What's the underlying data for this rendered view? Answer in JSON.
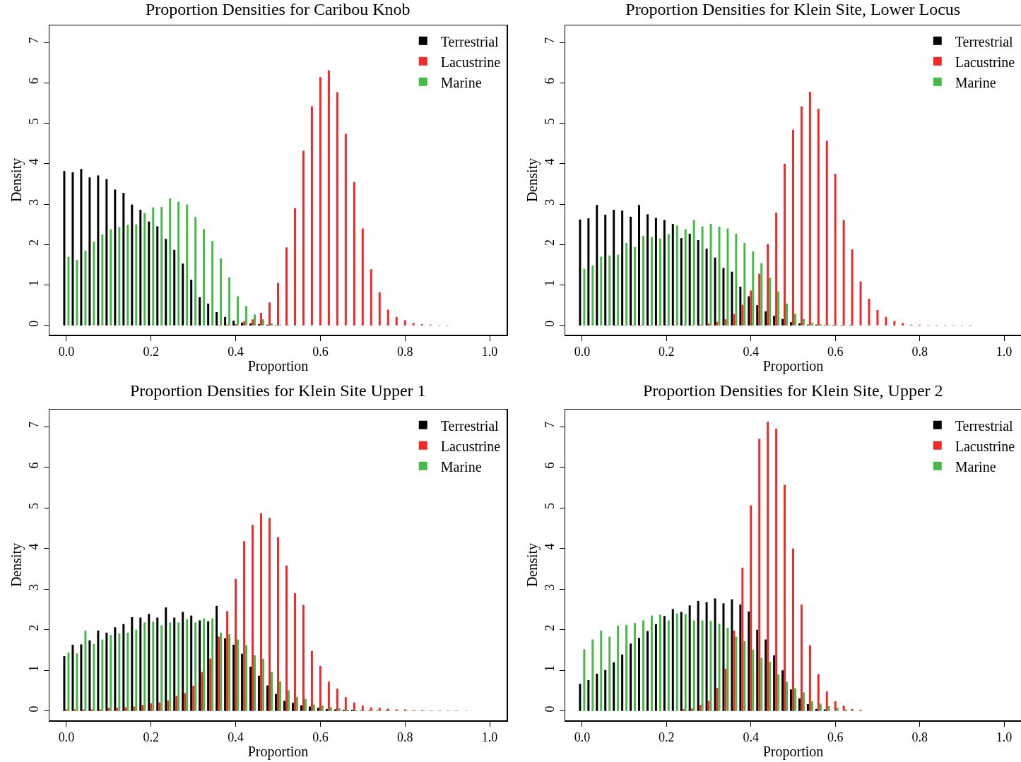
{
  "chart_data": [
    {
      "type": "bar",
      "title": "Proportion Densities for Caribou Knob",
      "xlabel": "Proportion",
      "ylabel": "Density",
      "legend": "top right",
      "x": [
        0,
        0.02,
        0.04,
        0.06,
        0.08,
        0.1,
        0.12,
        0.14,
        0.16,
        0.18,
        0.2,
        0.22,
        0.24,
        0.26,
        0.28,
        0.3,
        0.32,
        0.34,
        0.36,
        0.38,
        0.4,
        0.42,
        0.44,
        0.46,
        0.48,
        0.5,
        0.52,
        0.54,
        0.56,
        0.58,
        0.6,
        0.62,
        0.64,
        0.66,
        0.68,
        0.7,
        0.72,
        0.74,
        0.76,
        0.78,
        0.8,
        0.82,
        0.84,
        0.86,
        0.88,
        0.9,
        0.92,
        0.94,
        0.96,
        0.98
      ],
      "xlim": [
        -0.04,
        1.04
      ],
      "ylim": [
        -0.23,
        7.42
      ],
      "xticks": [
        {
          "value": 0,
          "label": "0.0"
        },
        {
          "value": 0.2,
          "label": "0.2"
        },
        {
          "value": 0.4,
          "label": "0.4"
        },
        {
          "value": 0.6,
          "label": "0.6"
        },
        {
          "value": 0.8,
          "label": "0.8"
        },
        {
          "value": 1,
          "label": "1.0"
        }
      ],
      "yticks": [
        0,
        1,
        2,
        3,
        4,
        5,
        6,
        7
      ],
      "series": [
        {
          "name": "Terrestrial",
          "color": "#000000",
          "values": [
            3.82,
            3.79,
            3.87,
            3.66,
            3.71,
            3.62,
            3.36,
            3.28,
            2.99,
            2.86,
            2.57,
            2.45,
            2.14,
            1.87,
            1.53,
            1.13,
            0.7,
            0.54,
            0.33,
            0.21,
            0.12,
            0.07,
            0.05,
            0.03,
            0.02,
            0.01,
            0,
            0,
            0,
            0,
            0,
            0,
            0,
            0,
            0,
            0,
            0,
            0,
            0,
            0,
            0,
            0,
            0,
            0,
            0,
            0,
            0,
            0,
            0,
            0
          ]
        },
        {
          "name": "Lacustrine",
          "color": "#ee2a2a",
          "values": [
            0,
            0,
            0,
            0,
            0,
            0,
            0,
            0,
            0,
            0,
            0,
            0,
            0,
            0,
            0,
            0,
            0,
            0,
            0.01,
            0.02,
            0.03,
            0.1,
            0.15,
            0.31,
            0.57,
            1.05,
            1.93,
            2.9,
            4.32,
            5.42,
            6.14,
            6.31,
            5.77,
            4.74,
            3.55,
            2.4,
            1.39,
            0.82,
            0.39,
            0.21,
            0.13,
            0.06,
            0.03,
            0.02,
            0.01,
            0.01,
            0,
            0,
            0,
            0
          ]
        },
        {
          "name": "Marine",
          "color": "#46b946",
          "values": [
            1.7,
            1.62,
            1.85,
            2.07,
            2.25,
            2.38,
            2.43,
            2.49,
            2.5,
            2.78,
            2.92,
            2.93,
            3.14,
            3.06,
            2.99,
            2.68,
            2.38,
            2.09,
            1.66,
            1.19,
            0.72,
            0.48,
            0.27,
            0.15,
            0.05,
            0.02,
            0.01,
            0,
            0,
            0,
            0,
            0,
            0,
            0,
            0,
            0,
            0,
            0,
            0,
            0,
            0,
            0,
            0,
            0,
            0,
            0,
            0,
            0,
            0,
            0
          ]
        }
      ]
    },
    {
      "type": "bar",
      "title": "Proportion Densities for Klein Site, Lower Locus",
      "xlabel": "Proportion",
      "ylabel": "Density",
      "legend": "top right",
      "x": [
        0,
        0.02,
        0.04,
        0.06,
        0.08,
        0.1,
        0.12,
        0.14,
        0.16,
        0.18,
        0.2,
        0.22,
        0.24,
        0.26,
        0.28,
        0.3,
        0.32,
        0.34,
        0.36,
        0.38,
        0.4,
        0.42,
        0.44,
        0.46,
        0.48,
        0.5,
        0.52,
        0.54,
        0.56,
        0.58,
        0.6,
        0.62,
        0.64,
        0.66,
        0.68,
        0.7,
        0.72,
        0.74,
        0.76,
        0.78,
        0.8,
        0.82,
        0.84,
        0.86,
        0.88,
        0.9,
        0.92,
        0.94,
        0.96,
        0.98
      ],
      "xlim": [
        -0.04,
        1.04
      ],
      "ylim": [
        -0.23,
        7.42
      ],
      "xticks": [
        {
          "value": 0,
          "label": "0.0"
        },
        {
          "value": 0.2,
          "label": "0.2"
        },
        {
          "value": 0.4,
          "label": "0.4"
        },
        {
          "value": 0.6,
          "label": "0.6"
        },
        {
          "value": 0.8,
          "label": "0.8"
        },
        {
          "value": 1,
          "label": "1.0"
        }
      ],
      "yticks": [
        0,
        1,
        2,
        3,
        4,
        5,
        6,
        7
      ],
      "series": [
        {
          "name": "Terrestrial",
          "color": "#000000",
          "values": [
            2.62,
            2.65,
            2.98,
            2.74,
            2.86,
            2.84,
            2.69,
            2.98,
            2.75,
            2.66,
            2.61,
            2.51,
            2.16,
            2.27,
            2.11,
            1.9,
            1.68,
            1.42,
            1.33,
            0.96,
            0.72,
            0.5,
            0.35,
            0.24,
            0.16,
            0.08,
            0.05,
            0.02,
            0.02,
            0.01,
            0.01,
            0.01,
            0.01,
            0,
            0,
            0,
            0,
            0,
            0,
            0,
            0,
            0,
            0,
            0,
            0,
            0,
            0,
            0,
            0,
            0
          ]
        },
        {
          "name": "Lacustrine",
          "color": "#ee2a2a",
          "values": [
            0,
            0,
            0,
            0.01,
            0.01,
            0.01,
            0.01,
            0.01,
            0.01,
            0.01,
            0.01,
            0.01,
            0.01,
            0.01,
            0.02,
            0.05,
            0.09,
            0.15,
            0.28,
            0.51,
            0.86,
            1.28,
            2.01,
            2.79,
            4.0,
            4.84,
            5.42,
            5.78,
            5.36,
            4.57,
            3.75,
            2.61,
            1.88,
            1.09,
            0.66,
            0.38,
            0.21,
            0.11,
            0.06,
            0.02,
            0.02,
            0.01,
            0.01,
            0.01,
            0.01,
            0.01,
            0.01,
            0,
            0,
            0
          ]
        },
        {
          "name": "Marine",
          "color": "#46b946",
          "values": [
            1.4,
            1.48,
            1.7,
            1.73,
            1.75,
            2.04,
            1.94,
            2.21,
            2.19,
            2.15,
            2.26,
            2.47,
            2.38,
            2.61,
            2.45,
            2.51,
            2.44,
            2.4,
            2.27,
            2.04,
            1.83,
            1.54,
            1.18,
            0.84,
            0.54,
            0.29,
            0.16,
            0.07,
            0.03,
            0.02,
            0.01,
            0.01,
            0,
            0,
            0,
            0,
            0,
            0,
            0,
            0,
            0,
            0,
            0,
            0,
            0,
            0,
            0,
            0,
            0,
            0
          ]
        }
      ]
    },
    {
      "type": "bar",
      "title": "Proportion Densities for Klein Site Upper 1",
      "xlabel": "Proportion",
      "ylabel": "Density",
      "legend": "top right",
      "x": [
        0,
        0.02,
        0.04,
        0.06,
        0.08,
        0.1,
        0.12,
        0.14,
        0.16,
        0.18,
        0.2,
        0.22,
        0.24,
        0.26,
        0.28,
        0.3,
        0.32,
        0.34,
        0.36,
        0.38,
        0.4,
        0.42,
        0.44,
        0.46,
        0.48,
        0.5,
        0.52,
        0.54,
        0.56,
        0.58,
        0.6,
        0.62,
        0.64,
        0.66,
        0.68,
        0.7,
        0.72,
        0.74,
        0.76,
        0.78,
        0.8,
        0.82,
        0.84,
        0.86,
        0.88,
        0.9,
        0.92,
        0.94,
        0.96,
        0.98
      ],
      "xlim": [
        -0.04,
        1.04
      ],
      "ylim": [
        -0.23,
        7.42
      ],
      "xticks": [
        {
          "value": 0,
          "label": "0.0"
        },
        {
          "value": 0.2,
          "label": "0.2"
        },
        {
          "value": 0.4,
          "label": "0.4"
        },
        {
          "value": 0.6,
          "label": "0.6"
        },
        {
          "value": 0.8,
          "label": "0.8"
        },
        {
          "value": 1,
          "label": "1.0"
        }
      ],
      "yticks": [
        0,
        1,
        2,
        3,
        4,
        5,
        6,
        7
      ],
      "series": [
        {
          "name": "Terrestrial",
          "color": "#000000",
          "values": [
            1.35,
            1.63,
            1.64,
            1.74,
            1.98,
            1.93,
            2.06,
            2.14,
            2.31,
            2.3,
            2.39,
            2.3,
            2.55,
            2.3,
            2.44,
            2.35,
            2.23,
            2.21,
            2.59,
            1.79,
            1.63,
            1.41,
            1.09,
            0.87,
            0.63,
            0.42,
            0.25,
            0.2,
            0.14,
            0.11,
            0.08,
            0.05,
            0.04,
            0.03,
            0.03,
            0.01,
            0.01,
            0.01,
            0.01,
            0,
            0,
            0,
            0,
            0,
            0,
            0,
            0,
            0,
            0,
            0
          ]
        },
        {
          "name": "Lacustrine",
          "color": "#ee2a2a",
          "values": [
            0.04,
            0.04,
            0.04,
            0.04,
            0.04,
            0.08,
            0.08,
            0.09,
            0.11,
            0.15,
            0.19,
            0.21,
            0.26,
            0.37,
            0.44,
            0.62,
            0.96,
            1.29,
            1.83,
            2.46,
            3.25,
            4.18,
            4.58,
            4.87,
            4.75,
            4.28,
            3.58,
            2.9,
            2.61,
            1.48,
            1.11,
            0.72,
            0.55,
            0.34,
            0.21,
            0.13,
            0.09,
            0.08,
            0.06,
            0.04,
            0.04,
            0.02,
            0.02,
            0.01,
            0.01,
            0.01,
            0.01,
            0,
            0,
            0
          ]
        },
        {
          "name": "Marine",
          "color": "#46b946",
          "values": [
            1.44,
            1.42,
            1.98,
            1.65,
            1.76,
            1.87,
            1.91,
            1.93,
            2.0,
            2.18,
            2.2,
            2.11,
            2.18,
            2.18,
            2.26,
            2.18,
            2.28,
            2.28,
            1.93,
            1.89,
            1.76,
            1.62,
            1.37,
            1.29,
            0.96,
            0.73,
            0.51,
            0.35,
            0.3,
            0.16,
            0.14,
            0.09,
            0.07,
            0.03,
            0.02,
            0.01,
            0.01,
            0.01,
            0.01,
            0.01,
            0.01,
            0.01,
            0.01,
            0.01,
            0.01,
            0.01,
            0.01,
            0.01,
            0,
            0
          ]
        }
      ]
    },
    {
      "type": "bar",
      "title": "Proportion Densities for Klein Site, Upper 2",
      "xlabel": "Proportion",
      "ylabel": "Density",
      "legend": "top right",
      "x": [
        0,
        0.02,
        0.04,
        0.06,
        0.08,
        0.1,
        0.12,
        0.14,
        0.16,
        0.18,
        0.2,
        0.22,
        0.24,
        0.26,
        0.28,
        0.3,
        0.32,
        0.34,
        0.36,
        0.38,
        0.4,
        0.42,
        0.44,
        0.46,
        0.48,
        0.5,
        0.52,
        0.54,
        0.56,
        0.58,
        0.6,
        0.62,
        0.64,
        0.66,
        0.68,
        0.7,
        0.72,
        0.74,
        0.76,
        0.78,
        0.8,
        0.82,
        0.84,
        0.86,
        0.88,
        0.9,
        0.92,
        0.94,
        0.96,
        0.98
      ],
      "xlim": [
        -0.04,
        1.04
      ],
      "ylim": [
        -0.23,
        7.42
      ],
      "xticks": [
        {
          "value": 0,
          "label": "0.0"
        },
        {
          "value": 0.2,
          "label": "0.2"
        },
        {
          "value": 0.4,
          "label": "0.4"
        },
        {
          "value": 0.6,
          "label": "0.6"
        },
        {
          "value": 0.8,
          "label": "0.8"
        },
        {
          "value": 1,
          "label": "1.0"
        }
      ],
      "yticks": [
        0,
        1,
        2,
        3,
        4,
        5,
        6,
        7
      ],
      "series": [
        {
          "name": "Terrestrial",
          "color": "#000000",
          "values": [
            0.67,
            0.76,
            0.92,
            1.01,
            1.2,
            1.39,
            1.66,
            1.8,
            1.97,
            2.14,
            2.34,
            2.51,
            2.44,
            2.6,
            2.71,
            2.68,
            2.77,
            2.65,
            2.75,
            2.62,
            2.45,
            2.0,
            1.76,
            1.37,
            1.0,
            0.53,
            0.31,
            0.17,
            0.05,
            0.04,
            0,
            0,
            0,
            0,
            0,
            0,
            0,
            0,
            0,
            0,
            0,
            0,
            0,
            0,
            0,
            0,
            0,
            0,
            0,
            0
          ]
        },
        {
          "name": "Lacustrine",
          "color": "#ee2a2a",
          "values": [
            0,
            0,
            0,
            0,
            0,
            0,
            0,
            0,
            0,
            0,
            0,
            0,
            0.05,
            0.06,
            0.15,
            0.25,
            0.57,
            1.04,
            1.98,
            3.53,
            5.06,
            6.7,
            7.12,
            6.95,
            5.57,
            4.0,
            2.62,
            1.62,
            0.91,
            0.48,
            0.24,
            0.13,
            0.05,
            0.03,
            0,
            0,
            0,
            0,
            0,
            0,
            0,
            0,
            0,
            0,
            0,
            0,
            0,
            0,
            0,
            0
          ]
        },
        {
          "name": "Marine",
          "color": "#46b946",
          "values": [
            1.52,
            1.76,
            1.98,
            1.83,
            2.1,
            2.12,
            2.17,
            2.23,
            2.35,
            2.37,
            2.23,
            2.4,
            2.39,
            2.23,
            2.23,
            2.22,
            2.15,
            2.05,
            1.83,
            1.72,
            1.51,
            1.31,
            1.21,
            0.9,
            0.72,
            0.56,
            0.46,
            0.24,
            0.18,
            0.12,
            0.08,
            0.04,
            0,
            0,
            0,
            0,
            0,
            0,
            0,
            0,
            0,
            0,
            0,
            0,
            0,
            0,
            0,
            0,
            0,
            0
          ]
        }
      ]
    }
  ]
}
